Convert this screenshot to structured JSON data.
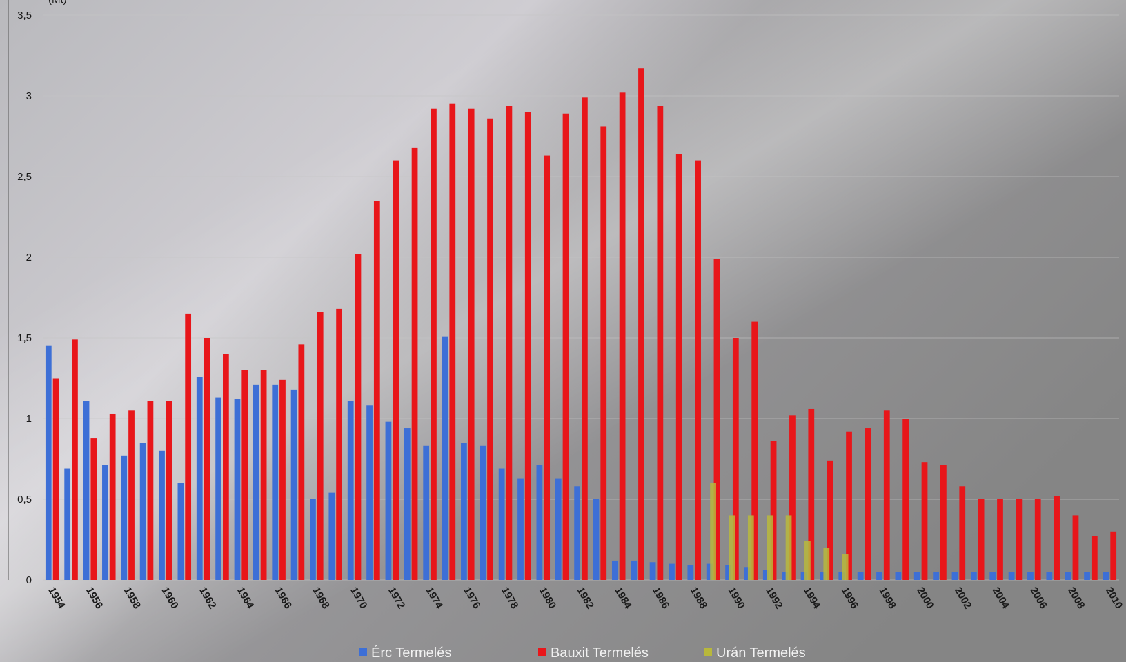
{
  "chart_data": {
    "type": "bar",
    "y_label": "(Mt)",
    "categories": [
      "1954",
      null,
      "1956",
      null,
      "1958",
      null,
      "1960",
      null,
      "1962",
      null,
      "1964",
      null,
      "1966",
      null,
      "1968",
      null,
      "1970",
      null,
      "1972",
      null,
      "1974",
      null,
      "1976",
      null,
      "1978",
      null,
      "1980",
      null,
      "1982",
      null,
      "1984",
      null,
      "1986",
      null,
      "1988",
      null,
      "1990",
      null,
      "1992",
      null,
      "1994",
      null,
      "1996",
      null,
      "1998",
      null,
      "2000",
      null,
      "2002",
      null,
      "2004",
      null,
      "2006",
      null,
      "2008",
      null,
      "2010"
    ],
    "series": [
      {
        "name": "Érc Termelés",
        "color": "#3d6fd6",
        "values": [
          1.45,
          0.69,
          1.11,
          0.71,
          0.77,
          0.85,
          0.8,
          0.6,
          1.26,
          1.13,
          1.12,
          1.21,
          1.21,
          1.18,
          0.5,
          0.54,
          1.11,
          1.08,
          0.98,
          0.94,
          0.83,
          1.51,
          0.85,
          0.83,
          0.69,
          0.63,
          0.71,
          0.63,
          0.58,
          0.5,
          0.12,
          0.12,
          0.11,
          0.1,
          0.09,
          0.1,
          0.09,
          0.08,
          0.06,
          0.05,
          0.05,
          0.05,
          0.05,
          0.05,
          0.05,
          0.05,
          0.05,
          0.05,
          0.05,
          0.05,
          0.05,
          0.05,
          0.05,
          0.05,
          0.05,
          0.05,
          0.05
        ]
      },
      {
        "name": "Bauxit Termelés",
        "color": "#e8161a",
        "values": [
          1.25,
          1.49,
          0.88,
          1.03,
          1.05,
          1.11,
          1.11,
          1.65,
          1.5,
          1.4,
          1.3,
          1.3,
          1.24,
          1.46,
          1.66,
          1.68,
          2.02,
          2.35,
          2.6,
          2.68,
          2.92,
          2.95,
          2.92,
          2.86,
          2.94,
          2.9,
          2.63,
          2.89,
          2.99,
          2.81,
          3.02,
          3.17,
          2.94,
          2.64,
          2.6,
          1.99,
          1.5,
          1.6,
          0.86,
          1.02,
          1.06,
          0.74,
          0.92,
          0.94,
          1.05,
          1.0,
          0.73,
          0.71,
          0.58,
          0.5,
          0.5,
          0.5,
          0.5,
          0.52,
          0.4,
          0.27,
          0.3
        ]
      },
      {
        "name": "Urán Termelés",
        "color": "#b8b83c",
        "values": [
          null,
          null,
          null,
          null,
          null,
          null,
          null,
          null,
          null,
          null,
          null,
          null,
          null,
          null,
          null,
          null,
          null,
          null,
          null,
          null,
          null,
          null,
          null,
          null,
          null,
          null,
          null,
          null,
          null,
          null,
          null,
          null,
          null,
          null,
          null,
          0.6,
          0.4,
          0.4,
          0.4,
          0.4,
          0.24,
          0.2,
          0.16,
          null,
          null,
          null,
          null,
          null,
          null,
          null,
          null,
          null,
          null,
          null,
          null,
          null,
          null
        ]
      }
    ],
    "ylim": [
      0,
      3.5
    ],
    "yticks": [
      0,
      {
        "value": 0.5,
        "label": "0,5"
      },
      1,
      {
        "value": 1.5,
        "label": "1,5"
      },
      2,
      {
        "value": 2.5,
        "label": "2,5"
      },
      3,
      {
        "value": 3.5,
        "label": "3,5"
      }
    ],
    "grid": true,
    "legend": "bottom"
  }
}
